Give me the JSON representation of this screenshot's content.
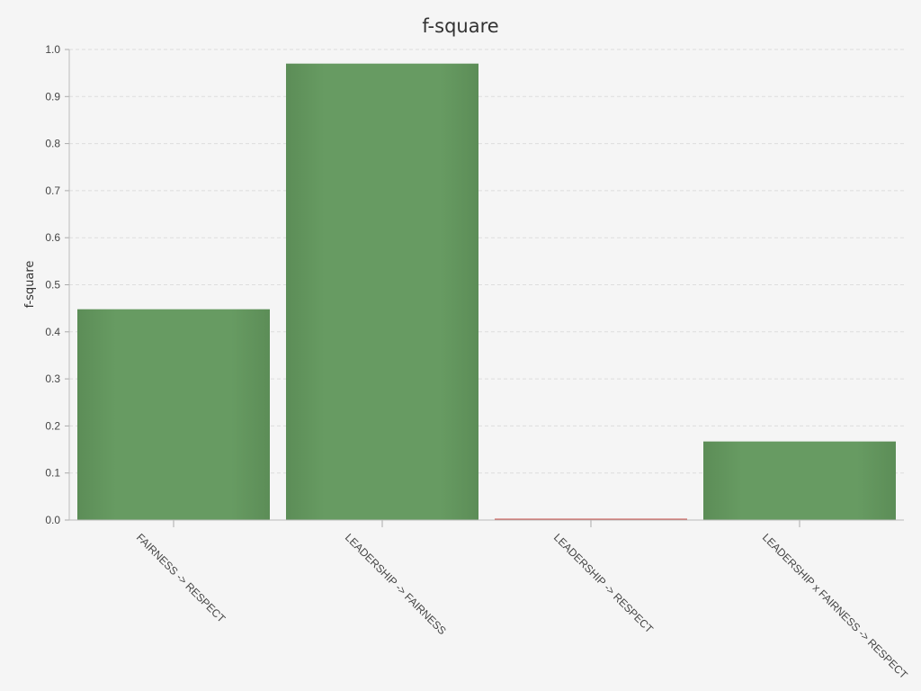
{
  "chart_data": {
    "type": "bar",
    "title": "f-square",
    "xlabel": "",
    "ylabel": "f-square",
    "ylim": [
      0,
      1.0
    ],
    "yticks": [
      "0.0",
      "0.1",
      "0.2",
      "0.3",
      "0.4",
      "0.5",
      "0.6",
      "0.7",
      "0.8",
      "0.9",
      "1.0"
    ],
    "categories": [
      "FAIRNESS -> RESPECT",
      "LEADERSHIP -> FAIRNESS",
      "LEADERSHIP -> RESPECT",
      "LEADERSHIP x FAIRNESS -> RESPECT"
    ],
    "values": [
      0.448,
      0.97,
      0.002,
      0.167
    ],
    "bar_colors": [
      "#64965f",
      "#64965f",
      "#c9504a",
      "#64965f"
    ],
    "grid": true,
    "legend": "none"
  }
}
